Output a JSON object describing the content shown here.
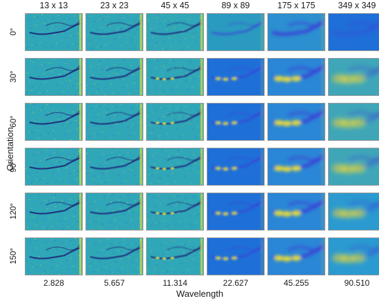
{
  "columns": [
    "13 x 13",
    "23 x 23",
    "45 x 45",
    "89 x 89",
    "175 x 175",
    "349 x 349"
  ],
  "rows": [
    "0°",
    "30°",
    "60°",
    "90°",
    "120°",
    "150°"
  ],
  "wavelengths": [
    "2.828",
    "5.657",
    "11.314",
    "22.627",
    "45.255",
    "90.510"
  ],
  "y_axis_title": "Orientation",
  "x_axis_title": "Wavelength",
  "colors": {
    "background_teal": "#2fa7b8",
    "deep_blue": "#3a3fd6",
    "mid_blue": "#1f6fd8",
    "yellow": "#f5e52a",
    "green": "#7cc24a"
  }
}
